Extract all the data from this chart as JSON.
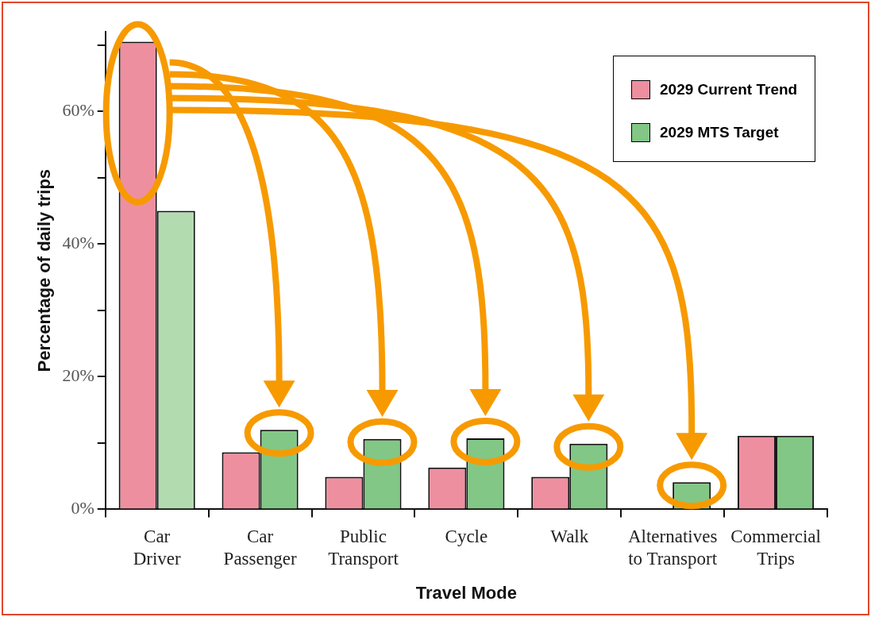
{
  "chart_data": {
    "type": "bar",
    "xlabel": "Travel Mode",
    "ylabel": "Percentage of daily trips",
    "categories": [
      "Car\nDriver",
      "Car\nPassenger",
      "Public\nTransport",
      "Cycle",
      "Walk",
      "Alternatives\nto Transport",
      "Commercial\nTrips"
    ],
    "series": [
      {
        "name": "2029 Current Trend",
        "color": "#ee8fa0",
        "values": [
          70.5,
          8.6,
          4.9,
          6.3,
          4.9,
          null,
          11.1
        ]
      },
      {
        "name": "2029 MTS Target",
        "color": "#82c785",
        "colors": [
          "#b2dbb0",
          "#82c785",
          "#82c785",
          "#82c785",
          "#82c785",
          "#82c785",
          "#82c785"
        ],
        "values": [
          45,
          12,
          10.6,
          10.7,
          9.9,
          4.1,
          11.1
        ]
      }
    ],
    "ylim": [
      0,
      72
    ],
    "yticks": [
      {
        "value": 0,
        "label": "0%"
      },
      {
        "value": 10,
        "label": null
      },
      {
        "value": 20,
        "label": "20%"
      },
      {
        "value": 30,
        "label": null
      },
      {
        "value": 40,
        "label": "40%"
      },
      {
        "value": 50,
        "label": null
      },
      {
        "value": 60,
        "label": "60%"
      },
      {
        "value": 70,
        "label": null
      }
    ],
    "grid": false,
    "legend": "top right"
  }
}
